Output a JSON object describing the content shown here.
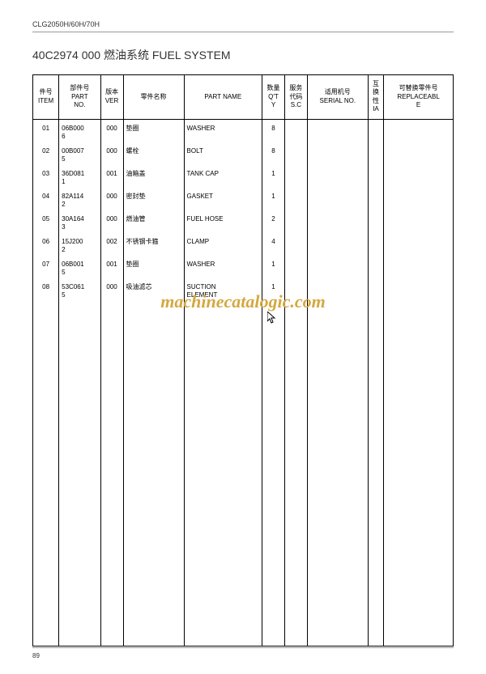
{
  "header": {
    "model": "CLG2050H/60H/70H"
  },
  "title": "40C2974 000 燃油系统 FUEL SYSTEM",
  "columns": {
    "item": "件号\nITEM",
    "partno": "部件号\nPART\nNO.",
    "ver": "版本\nVER",
    "name_cn": "零件名称",
    "name_en": "PART NAME",
    "qty": "数量\nQ'T\nY",
    "sc": "服务\n代码\nS.C",
    "serial": "适用机号\nSERIAL NO.",
    "ia": "互\n换\n性\nIA",
    "replace": "可替换零件号\nREPLACEABL\nE"
  },
  "rows": [
    {
      "item": "01",
      "partno": "06B0006",
      "ver": "000",
      "name_cn": "垫圈",
      "name_en": "WASHER",
      "qty": "8",
      "sc": "",
      "serial": "",
      "ia": "",
      "replace": ""
    },
    {
      "item": "02",
      "partno": "00B0075",
      "ver": "000",
      "name_cn": "螺栓",
      "name_en": "BOLT",
      "qty": "8",
      "sc": "",
      "serial": "",
      "ia": "",
      "replace": ""
    },
    {
      "item": "03",
      "partno": "36D0811",
      "ver": "001",
      "name_cn": "油箱盖",
      "name_en": "TANK CAP",
      "qty": "1",
      "sc": "",
      "serial": "",
      "ia": "",
      "replace": ""
    },
    {
      "item": "04",
      "partno": "82A1142",
      "ver": "000",
      "name_cn": "密封垫",
      "name_en": "GASKET",
      "qty": "1",
      "sc": "",
      "serial": "",
      "ia": "",
      "replace": ""
    },
    {
      "item": "05",
      "partno": "30A1643",
      "ver": "000",
      "name_cn": "燃油管",
      "name_en": "FUEL HOSE",
      "qty": "2",
      "sc": "",
      "serial": "",
      "ia": "",
      "replace": ""
    },
    {
      "item": "06",
      "partno": "15J2002",
      "ver": "002",
      "name_cn": "不锈钢卡箍",
      "name_en": "CLAMP",
      "qty": "4",
      "sc": "",
      "serial": "",
      "ia": "",
      "replace": ""
    },
    {
      "item": "07",
      "partno": "06B0015",
      "ver": "001",
      "name_cn": "垫圈",
      "name_en": "WASHER",
      "qty": "1",
      "sc": "",
      "serial": "",
      "ia": "",
      "replace": ""
    },
    {
      "item": "08",
      "partno": "53C0615",
      "ver": "000",
      "name_cn": "吸油滤芯",
      "name_en": "SUCTION ELEMENT",
      "qty": "1",
      "sc": "",
      "serial": "",
      "ia": "",
      "replace": ""
    }
  ],
  "watermark": "machinecatalogic.com",
  "page_number": "89"
}
